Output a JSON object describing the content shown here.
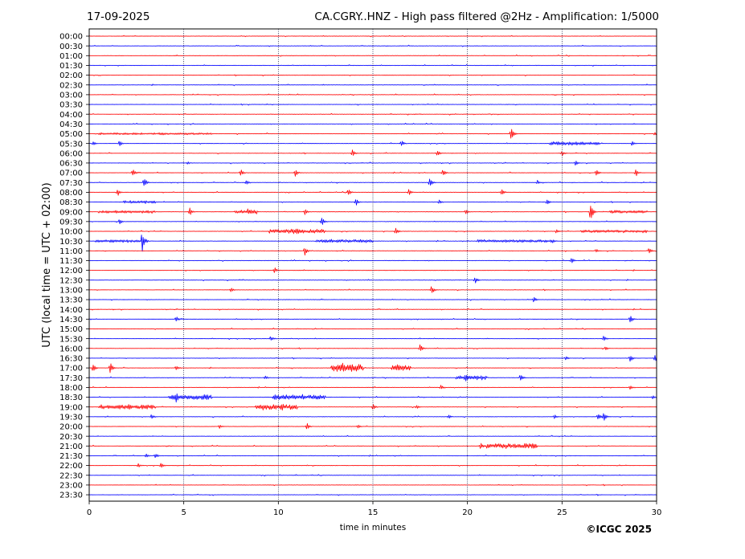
{
  "header": {
    "date": "17-09-2025",
    "title": "CA.CGRY..HNZ - High pass filtered @2Hz - Amplification: 1/5000"
  },
  "footer": {
    "copyright": "©ICGC 2025"
  },
  "chart_data": {
    "type": "line",
    "title": "CA.CGRY..HNZ - High pass filtered @2Hz - Amplification: 1/5000",
    "xlabel": "time in minutes",
    "ylabel": "UTC (local time = UTC + 02:00)",
    "xlim": [
      0,
      30
    ],
    "x_ticks": [
      0,
      5,
      10,
      15,
      20,
      25,
      30
    ],
    "x_tick_labels": [
      "0",
      "5",
      "10",
      "15",
      "20",
      "25",
      "30"
    ],
    "y_tick_labels": [
      "00:00",
      "00:30",
      "01:00",
      "01:30",
      "02:00",
      "02:30",
      "03:00",
      "03:30",
      "04:00",
      "04:30",
      "05:00",
      "05:30",
      "06:00",
      "06:30",
      "07:00",
      "07:30",
      "08:00",
      "08:30",
      "09:00",
      "09:30",
      "10:00",
      "10:30",
      "11:00",
      "11:30",
      "12:00",
      "12:30",
      "13:00",
      "13:30",
      "14:00",
      "14:30",
      "15:00",
      "15:30",
      "16:00",
      "16:30",
      "17:00",
      "17:30",
      "18:00",
      "18:30",
      "19:00",
      "19:30",
      "20:00",
      "20:30",
      "21:00",
      "21:30",
      "22:00",
      "22:30",
      "23:00",
      "23:30"
    ],
    "grid": "vertical dotted at every 5 minutes",
    "colors": {
      "even_trace": "#ff0000",
      "odd_trace": "#0000ff"
    },
    "events": [
      {
        "row": 8,
        "x": 17.2,
        "amp": 0.1
      },
      {
        "row": 9,
        "x": 28.8,
        "amp": 0.1
      },
      {
        "row": 10,
        "x": 3.9,
        "amp": 0.2
      },
      {
        "row": 10,
        "x": 22.3,
        "amp": 0.9
      },
      {
        "row": 10,
        "x": 29.9,
        "amp": 0.3
      },
      {
        "row": 11,
        "x": 0.2,
        "amp": 0.3
      },
      {
        "row": 11,
        "x": 1.6,
        "amp": 0.4
      },
      {
        "row": 11,
        "x": 16.5,
        "amp": 0.5
      },
      {
        "row": 11,
        "x": 24.8,
        "amp": 0.3
      },
      {
        "row": 11,
        "x": 28.7,
        "amp": 0.4
      },
      {
        "row": 12,
        "x": 13.9,
        "amp": 0.5
      },
      {
        "row": 12,
        "x": 18.4,
        "amp": 0.4
      },
      {
        "row": 12,
        "x": 25.0,
        "amp": 0.4
      },
      {
        "row": 13,
        "x": 5.2,
        "amp": 0.2
      },
      {
        "row": 13,
        "x": 25.7,
        "amp": 0.4
      },
      {
        "row": 14,
        "x": 2.3,
        "amp": 0.5
      },
      {
        "row": 14,
        "x": 8.0,
        "amp": 0.5
      },
      {
        "row": 14,
        "x": 10.9,
        "amp": 0.5
      },
      {
        "row": 14,
        "x": 18.7,
        "amp": 0.5
      },
      {
        "row": 14,
        "x": 26.8,
        "amp": 0.5
      },
      {
        "row": 14,
        "x": 28.9,
        "amp": 0.5
      },
      {
        "row": 15,
        "x": 2.9,
        "amp": 0.7
      },
      {
        "row": 15,
        "x": 8.3,
        "amp": 0.4
      },
      {
        "row": 15,
        "x": 18.0,
        "amp": 0.6
      },
      {
        "row": 15,
        "x": 23.7,
        "amp": 0.3
      },
      {
        "row": 16,
        "x": 1.5,
        "amp": 0.5
      },
      {
        "row": 16,
        "x": 13.7,
        "amp": 0.5
      },
      {
        "row": 16,
        "x": 16.9,
        "amp": 0.4
      },
      {
        "row": 16,
        "x": 21.8,
        "amp": 0.5
      },
      {
        "row": 17,
        "x": 14.1,
        "amp": 0.5
      },
      {
        "row": 17,
        "x": 18.5,
        "amp": 0.4
      },
      {
        "row": 17,
        "x": 24.2,
        "amp": 0.4
      },
      {
        "row": 18,
        "x": 5.3,
        "amp": 0.6
      },
      {
        "row": 18,
        "x": 8.4,
        "amp": 0.5
      },
      {
        "row": 18,
        "x": 11.4,
        "amp": 0.4
      },
      {
        "row": 18,
        "x": 19.9,
        "amp": 0.4
      },
      {
        "row": 18,
        "x": 26.5,
        "amp": 1.3
      },
      {
        "row": 19,
        "x": 1.6,
        "amp": 0.4
      },
      {
        "row": 19,
        "x": 12.3,
        "amp": 0.6
      },
      {
        "row": 20,
        "x": 11.0,
        "amp": 0.5
      },
      {
        "row": 20,
        "x": 16.2,
        "amp": 0.6
      },
      {
        "row": 20,
        "x": 24.7,
        "amp": 0.3
      },
      {
        "row": 21,
        "x": 2.8,
        "amp": 1.4
      },
      {
        "row": 21,
        "x": 14.0,
        "amp": 0.2
      },
      {
        "row": 21,
        "x": 24.5,
        "amp": 0.3
      },
      {
        "row": 22,
        "x": 11.4,
        "amp": 0.6
      },
      {
        "row": 22,
        "x": 26.8,
        "amp": 0.3
      },
      {
        "row": 22,
        "x": 29.6,
        "amp": 0.4
      },
      {
        "row": 23,
        "x": 25.5,
        "amp": 0.4
      },
      {
        "row": 24,
        "x": 9.8,
        "amp": 0.4
      },
      {
        "row": 25,
        "x": 20.4,
        "amp": 0.5
      },
      {
        "row": 26,
        "x": 7.5,
        "amp": 0.3
      },
      {
        "row": 26,
        "x": 18.1,
        "amp": 0.6
      },
      {
        "row": 27,
        "x": 23.5,
        "amp": 0.4
      },
      {
        "row": 29,
        "x": 4.6,
        "amp": 0.4
      },
      {
        "row": 29,
        "x": 28.6,
        "amp": 0.6
      },
      {
        "row": 31,
        "x": 9.6,
        "amp": 0.4
      },
      {
        "row": 31,
        "x": 27.2,
        "amp": 0.4
      },
      {
        "row": 32,
        "x": 17.5,
        "amp": 0.6
      },
      {
        "row": 32,
        "x": 27.3,
        "amp": 0.3
      },
      {
        "row": 33,
        "x": 25.2,
        "amp": 0.3
      },
      {
        "row": 33,
        "x": 28.6,
        "amp": 0.5
      },
      {
        "row": 33,
        "x": 29.9,
        "amp": 0.6
      },
      {
        "row": 34,
        "x": 0.2,
        "amp": 0.6
      },
      {
        "row": 34,
        "x": 1.1,
        "amp": 0.8
      },
      {
        "row": 34,
        "x": 4.6,
        "amp": 0.4
      },
      {
        "row": 34,
        "x": 13.4,
        "amp": 0.7
      },
      {
        "row": 34,
        "x": 16.3,
        "amp": 0.7
      },
      {
        "row": 35,
        "x": 9.3,
        "amp": 0.3
      },
      {
        "row": 35,
        "x": 19.9,
        "amp": 0.5
      },
      {
        "row": 35,
        "x": 22.8,
        "amp": 0.5
      },
      {
        "row": 36,
        "x": 18.6,
        "amp": 0.3
      },
      {
        "row": 36,
        "x": 28.6,
        "amp": 0.3
      },
      {
        "row": 37,
        "x": 4.6,
        "amp": 0.7
      },
      {
        "row": 37,
        "x": 6.1,
        "amp": 0.4
      },
      {
        "row": 37,
        "x": 10.0,
        "amp": 0.4
      },
      {
        "row": 37,
        "x": 11.3,
        "amp": 0.5
      },
      {
        "row": 37,
        "x": 29.8,
        "amp": 0.3
      },
      {
        "row": 38,
        "x": 2.1,
        "amp": 0.5
      },
      {
        "row": 38,
        "x": 9.2,
        "amp": 0.5
      },
      {
        "row": 38,
        "x": 10.2,
        "amp": 0.6
      },
      {
        "row": 38,
        "x": 15.0,
        "amp": 0.4
      },
      {
        "row": 38,
        "x": 17.3,
        "amp": 0.3
      },
      {
        "row": 39,
        "x": 3.3,
        "amp": 0.4
      },
      {
        "row": 39,
        "x": 19.0,
        "amp": 0.3
      },
      {
        "row": 39,
        "x": 24.6,
        "amp": 0.3
      },
      {
        "row": 39,
        "x": 26.9,
        "amp": 0.5
      },
      {
        "row": 39,
        "x": 27.2,
        "amp": 0.6
      },
      {
        "row": 40,
        "x": 6.9,
        "amp": 0.3
      },
      {
        "row": 40,
        "x": 11.5,
        "amp": 0.5
      },
      {
        "row": 40,
        "x": 14.2,
        "amp": 0.3
      },
      {
        "row": 42,
        "x": 20.7,
        "amp": 0.5
      },
      {
        "row": 42,
        "x": 23.0,
        "amp": 0.5
      },
      {
        "row": 43,
        "x": 3.0,
        "amp": 0.3
      },
      {
        "row": 43,
        "x": 3.5,
        "amp": 0.4
      },
      {
        "row": 44,
        "x": 2.6,
        "amp": 0.3
      },
      {
        "row": 44,
        "x": 3.8,
        "amp": 0.4
      }
    ],
    "noise_bands": [
      {
        "row": 10,
        "from": 0.5,
        "to": 6.5,
        "amp": 0.15
      },
      {
        "row": 11,
        "from": 24.3,
        "to": 27.0,
        "amp": 0.25
      },
      {
        "row": 17,
        "from": 1.8,
        "to": 3.5,
        "amp": 0.2
      },
      {
        "row": 18,
        "from": 0.5,
        "to": 3.5,
        "amp": 0.2
      },
      {
        "row": 18,
        "from": 7.7,
        "to": 8.9,
        "amp": 0.3
      },
      {
        "row": 18,
        "from": 27.5,
        "to": 29.5,
        "amp": 0.2
      },
      {
        "row": 20,
        "from": 9.5,
        "to": 12.5,
        "amp": 0.3
      },
      {
        "row": 20,
        "from": 26.0,
        "to": 29.5,
        "amp": 0.2
      },
      {
        "row": 21,
        "from": 0.3,
        "to": 3.0,
        "amp": 0.2
      },
      {
        "row": 21,
        "from": 12.0,
        "to": 15.0,
        "amp": 0.25
      },
      {
        "row": 21,
        "from": 20.5,
        "to": 24.5,
        "amp": 0.2
      },
      {
        "row": 34,
        "from": 12.8,
        "to": 14.5,
        "amp": 0.5
      },
      {
        "row": 34,
        "from": 16.0,
        "to": 17.0,
        "amp": 0.4
      },
      {
        "row": 35,
        "from": 19.4,
        "to": 21.0,
        "amp": 0.3
      },
      {
        "row": 37,
        "from": 4.2,
        "to": 6.5,
        "amp": 0.35
      },
      {
        "row": 37,
        "from": 9.7,
        "to": 12.5,
        "amp": 0.35
      },
      {
        "row": 38,
        "from": 0.5,
        "to": 3.5,
        "amp": 0.3
      },
      {
        "row": 38,
        "from": 8.8,
        "to": 11.0,
        "amp": 0.35
      },
      {
        "row": 42,
        "from": 21.0,
        "to": 23.7,
        "amp": 0.35
      }
    ]
  }
}
